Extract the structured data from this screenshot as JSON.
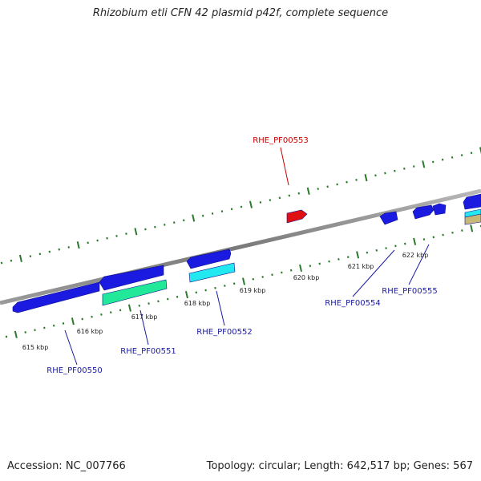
{
  "title": "Rhizobium etli CFN 42 plasmid p42f, complete sequence",
  "footer": {
    "accession": "Accession: NC_007766",
    "summary": "Topology: circular; Length: 642,517 bp; Genes: 567"
  },
  "colors": {
    "forward_gene": "#1a1ae0",
    "reverse_gene": "#1a1ae0",
    "highlight_gene": "#e01010",
    "cyan_feature": "#22e8f0",
    "green_feature": "#22e89a",
    "tan_feature": "#c8b878",
    "backbone": "#808080",
    "ticks": "#2a7a2a",
    "label_blue": "#1a1aa0",
    "label_red": "#cc0000"
  },
  "tick_labels": [
    "615 kbp",
    "616 kbp",
    "617 kbp",
    "618 kbp",
    "619 kbp",
    "620 kbp",
    "621 kbp",
    "622 kbp"
  ],
  "gene_labels": [
    "RHE_PF00550",
    "RHE_PF00551",
    "RHE_PF00552",
    "RHE_PF00553",
    "RHE_PF00554",
    "RHE_PF00555"
  ]
}
